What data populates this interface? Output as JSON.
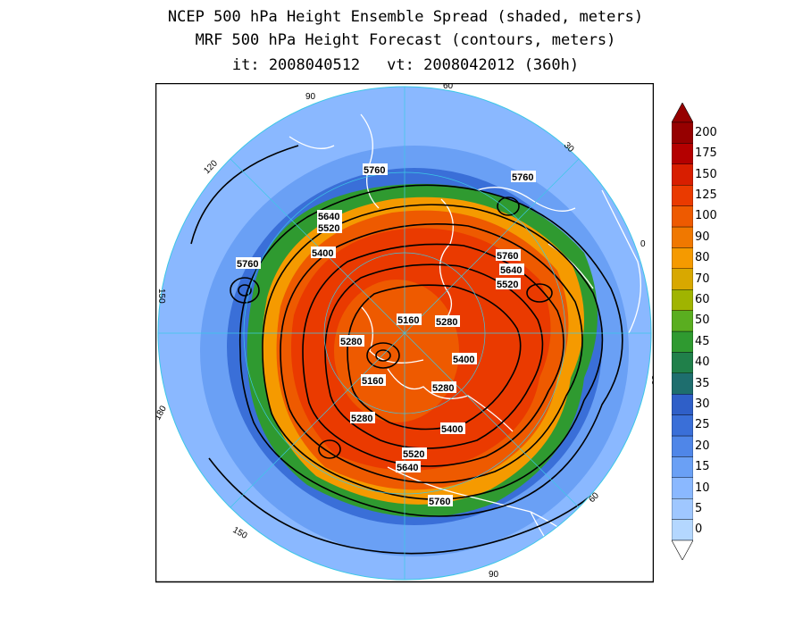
{
  "title": {
    "line1": "NCEP 500 hPa Height Ensemble Spread (shaded, meters)",
    "line2": "MRF 500 hPa Height Forecast (contours, meters)",
    "init": "it: 2008040512",
    "valid": "vt: 2008042012 (360h)"
  },
  "map": {
    "projection": "north-polar-stereographic",
    "longitude_labels": [
      "60",
      "30",
      "0",
      "30",
      "60",
      "90",
      "120",
      "150",
      "180",
      "150",
      "120",
      "90"
    ],
    "contour_labels": [
      "5760",
      "5760",
      "5640",
      "5520",
      "5400",
      "5760",
      "5760",
      "5640",
      "5520",
      "5160",
      "5280",
      "5280",
      "5400",
      "5160",
      "5280",
      "5280",
      "5400",
      "5520",
      "5640",
      "5760"
    ]
  },
  "colorbar": {
    "levels": [
      "0",
      "5",
      "10",
      "15",
      "20",
      "25",
      "30",
      "35",
      "40",
      "45",
      "50",
      "60",
      "70",
      "80",
      "90",
      "100",
      "125",
      "150",
      "175",
      "200"
    ],
    "colors": [
      "#b4d7ff",
      "#9fc7ff",
      "#8ab8ff",
      "#6aa0f5",
      "#4f86e8",
      "#3a6fd8",
      "#2f5fc8",
      "#1e6e6e",
      "#20804a",
      "#2f9a30",
      "#5aae20",
      "#a0b400",
      "#d8a800",
      "#f59a00",
      "#f07800",
      "#ee5a00",
      "#ea3a00",
      "#d81e00",
      "#b40000",
      "#960000"
    ]
  }
}
